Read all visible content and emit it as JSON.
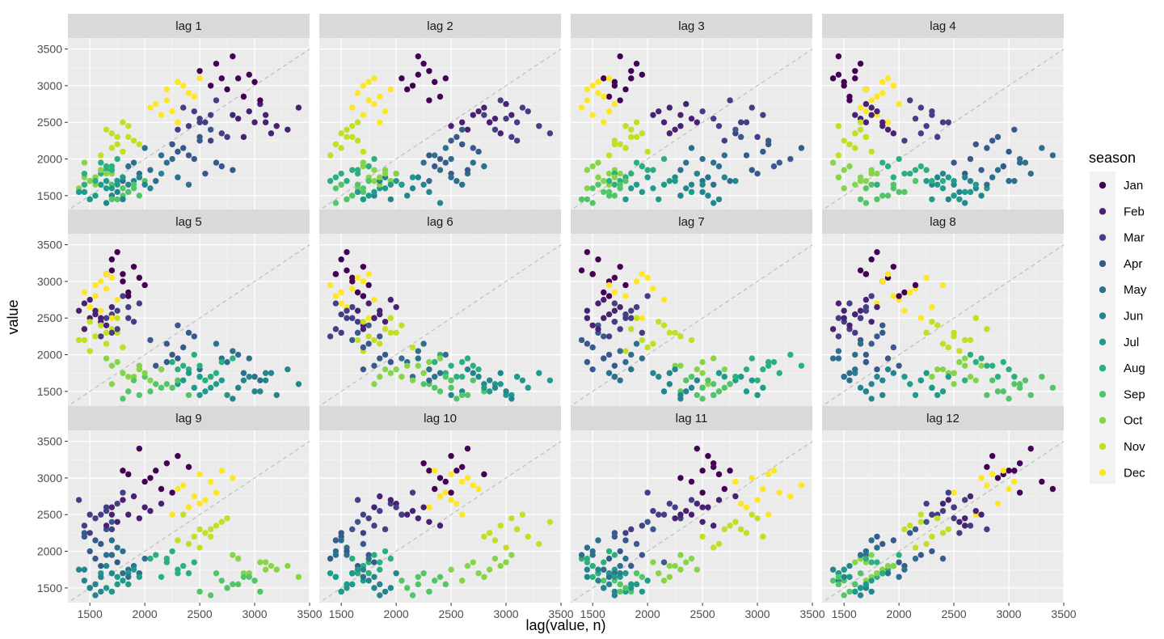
{
  "chart_data": {
    "type": "scatter",
    "title": "",
    "xlabel": "lag(value, n)",
    "ylabel": "value",
    "xlim": [
      1300,
      3500
    ],
    "ylim": [
      1300,
      3650
    ],
    "x_ticks": [
      1500,
      2000,
      2500,
      3000,
      3500
    ],
    "x_tick_labels": [
      "1500",
      "2000",
      "2500",
      "3000",
      "3500"
    ],
    "y_ticks": [
      1500,
      2000,
      2500,
      3000,
      3500
    ],
    "y_tick_labels": [
      "1500",
      "2000",
      "2500",
      "3000",
      "3500"
    ],
    "reference_line": "y = x (dashed grey)",
    "panels": [
      "lag 1",
      "lag 2",
      "lag 3",
      "lag 4",
      "lag 5",
      "lag 6",
      "lag 7",
      "lag 8",
      "lag 9",
      "lag 10",
      "lag 11",
      "lag 12"
    ],
    "legend": {
      "title": "season",
      "placement": "right",
      "entries": [
        {
          "name": "Jan",
          "color": "#440154"
        },
        {
          "name": "Feb",
          "color": "#482173"
        },
        {
          "name": "Mar",
          "color": "#433e85"
        },
        {
          "name": "Apr",
          "color": "#38598c"
        },
        {
          "name": "May",
          "color": "#2d708e"
        },
        {
          "name": "Jun",
          "color": "#25858e"
        },
        {
          "name": "Jul",
          "color": "#1e9b8a"
        },
        {
          "name": "Aug",
          "color": "#2ab07f"
        },
        {
          "name": "Sep",
          "color": "#52c569"
        },
        {
          "name": "Oct",
          "color": "#86d549"
        },
        {
          "name": "Nov",
          "color": "#c2df23"
        },
        {
          "name": "Dec",
          "color": "#fde725"
        }
      ]
    },
    "monthly_series": {
      "Jan": [
        2900,
        3000,
        3100,
        3200,
        3400,
        2850,
        3300,
        2950,
        3050,
        3100,
        2800,
        3150
      ],
      "Feb": [
        2300,
        2500,
        2600,
        2450,
        2700,
        2550,
        2400,
        2650,
        2750,
        2500,
        2600,
        2350
      ],
      "Mar": [
        2400,
        2550,
        2250,
        2650,
        2350,
        2500,
        2450,
        2800,
        2300,
        2500,
        2600,
        2700
      ],
      "Apr": [
        2050,
        1800,
        2200,
        1950,
        2150,
        2300,
        2000,
        1850,
        2100,
        2250,
        2400,
        1900
      ],
      "May": [
        1850,
        1700,
        1950,
        1800,
        2050,
        1750,
        2150,
        1900,
        1700,
        2000,
        1650,
        1950
      ],
      "Jun": [
        1650,
        1500,
        1750,
        1450,
        1600,
        1550,
        1800,
        1700,
        1500,
        1650,
        1400,
        1750
      ],
      "Jul": [
        1600,
        1450,
        1700,
        1550,
        1650,
        1500,
        1750,
        1600,
        1450,
        1700,
        1550,
        1650
      ],
      "Aug": [
        1800,
        1650,
        1900,
        1750,
        1850,
        1700,
        2000,
        1950,
        1800,
        1850,
        1700,
        1900
      ],
      "Sep": [
        1500,
        1400,
        1600,
        1450,
        1550,
        1650,
        1700,
        1500,
        1600,
        1550,
        1450,
        1650
      ],
      "Oct": [
        1700,
        1600,
        1850,
        1750,
        1650,
        1900,
        1800,
        1700,
        1850,
        1750,
        1950,
        1800
      ],
      "Nov": [
        2150,
        2050,
        2300,
        2200,
        2400,
        2250,
        2100,
        2350,
        2450,
        2300,
        2200,
        2500
      ],
      "Dec": [
        2600,
        2700,
        2500,
        2800,
        2900,
        2650,
        2750,
        3000,
        2850,
        3050,
        2950,
        3100
      ]
    }
  }
}
